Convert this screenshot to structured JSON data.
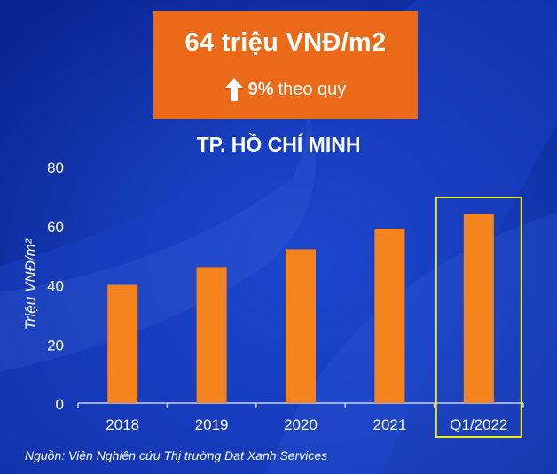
{
  "callout": {
    "value": "64 triệu VNĐ/m2",
    "change_pct": "9%",
    "change_text": "theo quý"
  },
  "colors": {
    "background": "#0b2da6",
    "bar": "#f5841f",
    "callout": "#ea6a1a",
    "highlight": "#f0ec1c",
    "text": "#ffffff"
  },
  "chart_data": {
    "type": "bar",
    "title": "TP. HỒ CHÍ MINH",
    "ylabel": "Triệu VNĐ/m²",
    "categories": [
      "2018",
      "2019",
      "2020",
      "2021",
      "Q1/2022"
    ],
    "values": [
      40,
      46,
      52,
      59,
      64
    ],
    "ylim": [
      0,
      80
    ],
    "yticks": [
      0,
      20,
      40,
      60,
      80
    ],
    "highlight_category": "Q1/2022",
    "grid": false,
    "legend": "none"
  },
  "source": "Nguồn: Viện Nghiên cứu Thị trường Dat Xanh Services"
}
